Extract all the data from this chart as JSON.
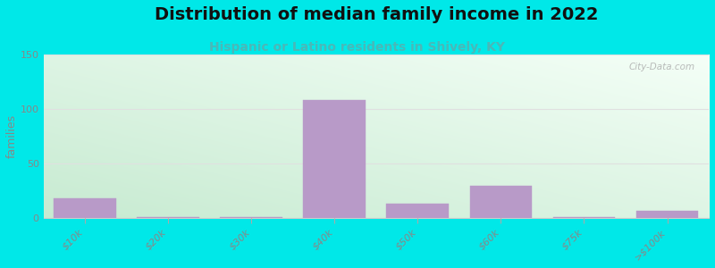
{
  "title": "Distribution of median family income in 2022",
  "subtitle": "Hispanic or Latino residents in Shively, KY",
  "categories": [
    "$10k",
    "$20k",
    "$30k",
    "$40k",
    "$50k",
    "$60k",
    "$75k",
    ">$100k"
  ],
  "values": [
    18,
    1,
    1,
    108,
    13,
    30,
    1,
    7
  ],
  "bar_color": "#b89ac8",
  "bar_edge_color": "#b89ac8",
  "ylabel": "families",
  "ylim": [
    0,
    150
  ],
  "yticks": [
    0,
    50,
    100,
    150
  ],
  "background_outer": "#00e8e8",
  "background_plot_topleft": "#c8e8d0",
  "background_plot_bottomright": "#f0fff8",
  "title_fontsize": 14,
  "subtitle_fontsize": 10,
  "subtitle_color": "#4ab8b8",
  "watermark": "City-Data.com",
  "grid_color": "#e0e0e0",
  "tick_label_color": "#888888"
}
